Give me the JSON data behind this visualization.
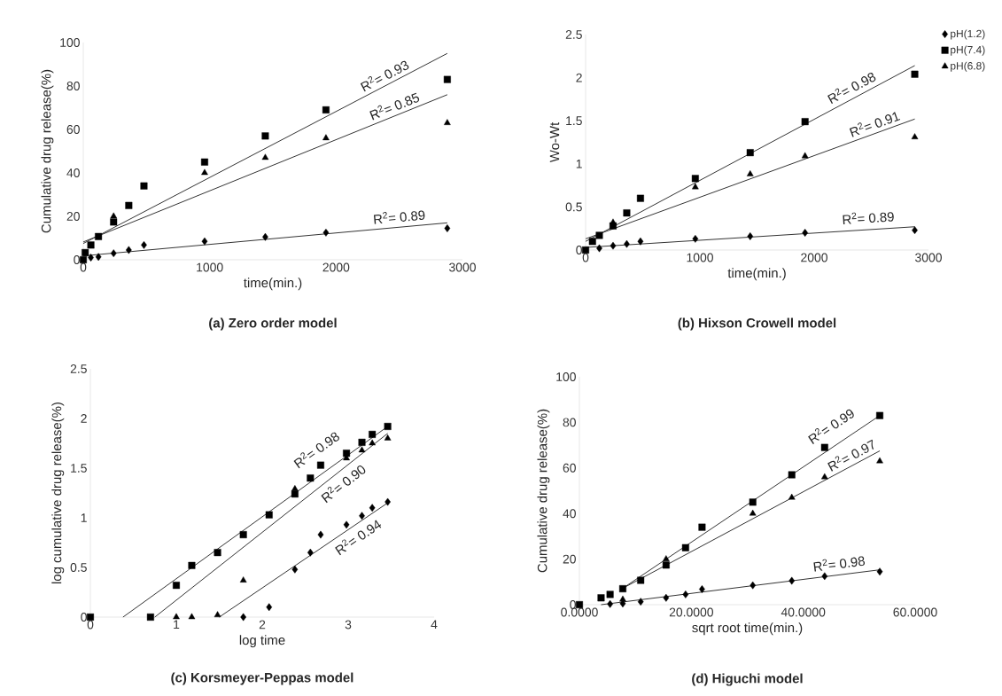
{
  "chart_data": [
    {
      "type": "scatter",
      "title": "(a) Zero order model",
      "xlabel": "time(min.)",
      "ylabel": "Cumulative drug release(%)",
      "xlim": [
        0,
        3000
      ],
      "xticks": [
        0,
        1000,
        2000,
        3000
      ],
      "ylim": [
        0,
        100
      ],
      "yticks": [
        0,
        20,
        40,
        60,
        80,
        100
      ],
      "series": [
        {
          "color": "#000000",
          "marker": "diamond",
          "x": [
            60,
            120,
            240,
            360,
            480,
            960,
            1440,
            1920,
            2880
          ],
          "values": [
            1,
            1.3,
            3,
            4.5,
            6.8,
            8.5,
            10.5,
            12.5,
            14.5
          ]
        },
        {
          "color": "#000000",
          "marker": "square",
          "x": [
            0,
            15,
            60,
            120,
            240,
            360,
            480,
            960,
            1440,
            1920,
            2880
          ],
          "values": [
            0,
            3.3,
            6.8,
            10.7,
            17.4,
            25,
            34,
            45,
            57,
            69,
            83
          ]
        },
        {
          "color": "#000000",
          "marker": "triangle",
          "x": [
            240,
            960,
            1440,
            1920,
            2880
          ],
          "values": [
            20,
            40,
            47,
            56,
            63
          ]
        },
        {
          "type": "line",
          "color": "#333333",
          "x": [
            0,
            2880
          ],
          "values": [
            7.5,
            95
          ]
        },
        {
          "type": "line",
          "color": "#333333",
          "x": [
            0,
            2880
          ],
          "values": [
            8.2,
            76
          ]
        },
        {
          "type": "line",
          "color": "#333333",
          "x": [
            0,
            2880
          ],
          "values": [
            1.8,
            17
          ]
        }
      ],
      "annotations": [
        "R$^{2}$= 0.93",
        "R$^{2}$= 0.85",
        "R$^{2}$= 0.89"
      ]
    },
    {
      "type": "scatter",
      "title": "(b) Hixson Crowell model",
      "xlabel": "time(min.)",
      "ylabel": "Wo-Wt",
      "legend": "top right",
      "xlim": [
        0,
        3000
      ],
      "xticks": [
        0,
        1000,
        2000,
        3000
      ],
      "ylim": [
        0,
        2.5
      ],
      "yticks": [
        0,
        0.5,
        1,
        1.5,
        2,
        2.5
      ],
      "series": [
        {
          "name": "pH(1.2)",
          "color": "#000000",
          "marker": "diamond",
          "x": [
            120,
            240,
            360,
            480,
            960,
            1440,
            1920,
            2880
          ],
          "values": [
            0.02,
            0.05,
            0.07,
            0.1,
            0.13,
            0.16,
            0.2,
            0.23
          ]
        },
        {
          "name": "pH(7.4)",
          "color": "#000000",
          "marker": "square",
          "x": [
            0,
            60,
            120,
            240,
            360,
            480,
            960,
            1440,
            1920,
            2880
          ],
          "values": [
            0,
            0.1,
            0.17,
            0.28,
            0.43,
            0.6,
            0.83,
            1.13,
            1.49,
            2.04
          ]
        },
        {
          "name": "pH(6.8)",
          "color": "#000000",
          "marker": "triangle",
          "x": [
            240,
            960,
            1440,
            1920,
            2880
          ],
          "values": [
            0.32,
            0.73,
            0.88,
            1.09,
            1.31
          ]
        },
        {
          "type": "line",
          "color": "#333333",
          "x": [
            0,
            2880
          ],
          "values": [
            0.1,
            2.14
          ]
        },
        {
          "type": "line",
          "color": "#333333",
          "x": [
            0,
            2880
          ],
          "values": [
            0.13,
            1.52
          ]
        },
        {
          "type": "line",
          "color": "#333333",
          "x": [
            0,
            2880
          ],
          "values": [
            0.03,
            0.27
          ]
        }
      ],
      "annotations": [
        "R$^{2}$= 0.98",
        "R$^{2}$= 0.91",
        "R$^{2}$= 0.89"
      ]
    },
    {
      "type": "scatter",
      "title": "(c) Korsmeyer-Peppas model",
      "xlabel": "log time",
      "ylabel": "log cumulative drug release(%)",
      "xlim": [
        0,
        4
      ],
      "xticks": [
        0,
        1,
        2,
        3,
        4
      ],
      "ylim": [
        0,
        2.5
      ],
      "yticks": [
        0,
        0.5,
        1,
        1.5,
        2,
        2.5
      ],
      "series": [
        {
          "color": "#000000",
          "marker": "diamond",
          "x": [
            1.78,
            2.08,
            2.38,
            2.56,
            2.68,
            2.98,
            3.16,
            3.28,
            3.46
          ],
          "values": [
            0,
            0.1,
            0.48,
            0.65,
            0.83,
            0.93,
            1.02,
            1.1,
            1.16
          ]
        },
        {
          "color": "#000000",
          "marker": "square",
          "x": [
            0,
            0.7,
            1,
            1.18,
            1.48,
            1.78,
            2.08,
            2.38,
            2.56,
            2.68,
            2.98,
            3.16,
            3.28,
            3.46
          ],
          "values": [
            0,
            0,
            0.32,
            0.52,
            0.65,
            0.83,
            1.03,
            1.24,
            1.4,
            1.53,
            1.65,
            1.76,
            1.84,
            1.92
          ]
        },
        {
          "color": "#000000",
          "marker": "triangle",
          "x": [
            1,
            1.18,
            1.48,
            1.78,
            2.38,
            2.98,
            3.16,
            3.28,
            3.46
          ],
          "values": [
            0,
            0,
            0.02,
            0.37,
            1.29,
            1.6,
            1.68,
            1.75,
            1.8
          ]
        },
        {
          "type": "line",
          "color": "#333333",
          "x": [
            0.38,
            3.46
          ],
          "values": [
            0,
            1.92
          ]
        },
        {
          "type": "line",
          "color": "#333333",
          "x": [
            0.75,
            3.46
          ],
          "values": [
            0,
            1.85
          ]
        },
        {
          "type": "line",
          "color": "#333333",
          "x": [
            1.5,
            3.46
          ],
          "values": [
            0,
            1.15
          ]
        }
      ],
      "annotations": [
        "R$^{2}$= 0.98",
        "R$^{2}$= 0.90",
        "R$^{2}$= 0.94"
      ]
    },
    {
      "type": "scatter",
      "title": "(d) Higuchi model",
      "xlabel": "sqrt root time(min.)",
      "ylabel": "Cumulative drug release(%)",
      "xlim": [
        0,
        60
      ],
      "xticks": [
        {
          "value": 0,
          "label": "0.0000"
        },
        {
          "value": 20,
          "label": "20.0000"
        },
        {
          "value": 40,
          "label": "40.0000"
        },
        {
          "value": 60,
          "label": "60.0000"
        }
      ],
      "ylim": [
        0,
        100
      ],
      "yticks": [
        0,
        20,
        40,
        60,
        80,
        100
      ],
      "series": [
        {
          "color": "#000000",
          "marker": "diamond",
          "x": [
            5.48,
            7.75,
            10.95,
            15.49,
            18.97,
            21.91,
            30.98,
            37.95,
            43.82,
            53.67
          ],
          "values": [
            0.3,
            0.5,
            1.3,
            3,
            4.5,
            6.8,
            8.5,
            10.5,
            12.5,
            14.5
          ]
        },
        {
          "color": "#000000",
          "marker": "square",
          "x": [
            0,
            3.87,
            5.48,
            7.75,
            10.95,
            15.49,
            18.97,
            21.91,
            30.98,
            37.95,
            43.82,
            53.67
          ],
          "values": [
            0,
            3,
            4.5,
            7,
            10.7,
            17.4,
            25,
            34,
            45,
            57,
            69,
            83
          ]
        },
        {
          "color": "#000000",
          "marker": "triangle",
          "x": [
            7.75,
            15.49,
            30.98,
            37.95,
            43.82,
            53.67
          ],
          "values": [
            2.3,
            20,
            40,
            47,
            56,
            63
          ]
        },
        {
          "type": "line",
          "color": "#333333",
          "x": [
            7.75,
            53.67
          ],
          "values": [
            7.2,
            83
          ]
        },
        {
          "type": "line",
          "color": "#333333",
          "x": [
            7.75,
            53.67
          ],
          "values": [
            7.2,
            67.5
          ]
        },
        {
          "type": "line",
          "color": "#333333",
          "x": [
            3.87,
            53.67
          ],
          "values": [
            0,
            15.3
          ]
        }
      ],
      "annotations": [
        "R$^{2}$= 0.99",
        "R$^{2}$= 0.97",
        "R$^{2}$= 0.98"
      ]
    }
  ]
}
